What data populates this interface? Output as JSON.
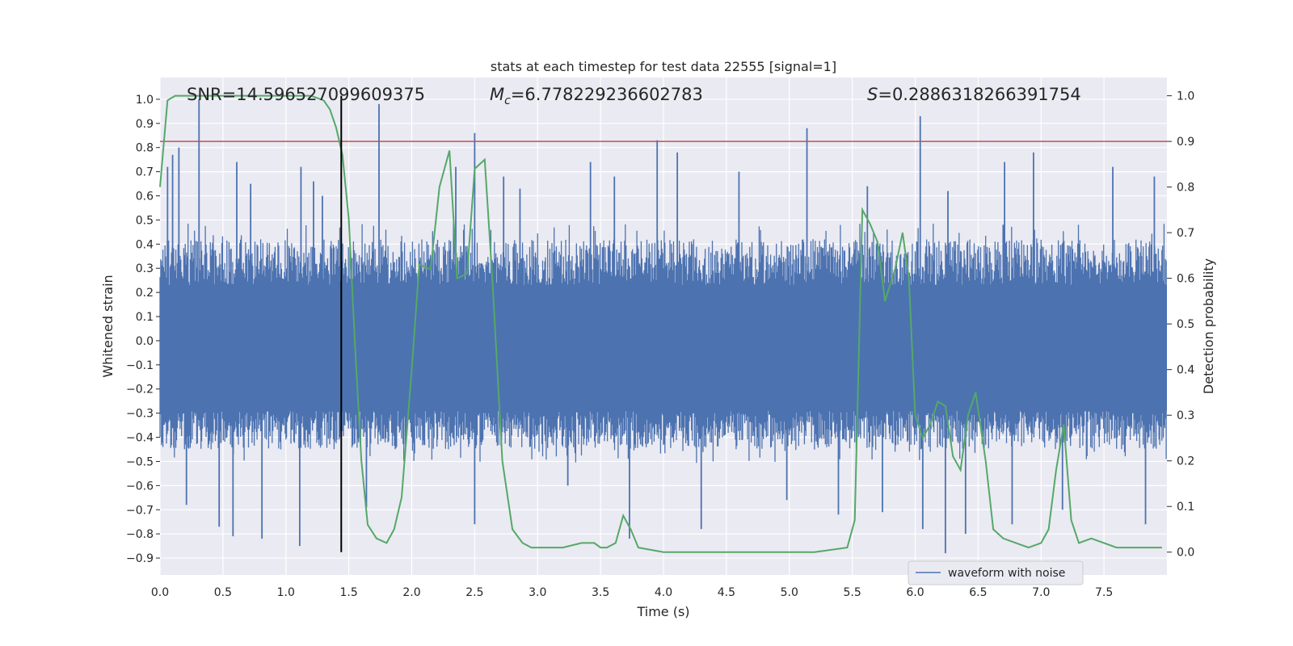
{
  "chart_data": {
    "type": "line",
    "title": "stats at each timestep for test data 22555 [signal=1]",
    "xlabel": "Time (s)",
    "ylabel": "Whitened strain",
    "y2label": "Detection probability",
    "xlim": [
      0.0,
      8.0
    ],
    "ylim": [
      -0.97,
      1.09
    ],
    "y2lim": [
      -0.05,
      1.04
    ],
    "xticks": [
      "0.0",
      "0.5",
      "1.0",
      "1.5",
      "2.0",
      "2.5",
      "3.0",
      "3.5",
      "4.0",
      "4.5",
      "5.0",
      "5.5",
      "6.0",
      "6.5",
      "7.0",
      "7.5"
    ],
    "yticks": [
      "1.0",
      "0.9",
      "0.8",
      "0.7",
      "0.6",
      "0.5",
      "0.4",
      "0.3",
      "0.2",
      "0.1",
      "0.0",
      "-0.1",
      "-0.2",
      "-0.3",
      "-0.4",
      "-0.5",
      "-0.6",
      "-0.7",
      "-0.8",
      "-0.9"
    ],
    "y2ticks": [
      "1.0",
      "0.9",
      "0.8",
      "0.7",
      "0.6",
      "0.5",
      "0.4",
      "0.3",
      "0.2",
      "0.1",
      "0.0"
    ],
    "grid": true,
    "legend": {
      "position": "lower right",
      "entries": [
        "waveform with noise"
      ]
    },
    "annotations": {
      "snr": "SNR=14.596527099609375",
      "mc_symbol": "M",
      "mc_sub": "c",
      "mc_value": "=6.778229236602783",
      "s_symbol": "S",
      "s_value": "=0.2886318266391754"
    },
    "threshold": {
      "axis": "y2",
      "value": 0.9,
      "color": "#c44e52"
    },
    "marker_time": 1.44,
    "waveform": {
      "name": "waveform with noise",
      "color": "#4c72b0",
      "t_start": 0.0,
      "t_end": 8.0,
      "body_upper": 0.23,
      "body_lower": -0.29,
      "envelope_upper": 0.42,
      "envelope_lower": -0.45,
      "spikes": [
        [
          0.06,
          0.72
        ],
        [
          0.1,
          0.77
        ],
        [
          0.15,
          0.8
        ],
        [
          0.31,
          1.0
        ],
        [
          0.61,
          0.74
        ],
        [
          0.72,
          0.65
        ],
        [
          1.12,
          0.72
        ],
        [
          1.22,
          0.66
        ],
        [
          1.29,
          0.6
        ],
        [
          1.74,
          0.98
        ],
        [
          2.35,
          0.72
        ],
        [
          2.5,
          0.86
        ],
        [
          2.73,
          0.68
        ],
        [
          2.86,
          0.63
        ],
        [
          3.42,
          0.74
        ],
        [
          3.61,
          0.68
        ],
        [
          3.95,
          0.83
        ],
        [
          4.11,
          0.78
        ],
        [
          4.6,
          0.7
        ],
        [
          5.14,
          0.88
        ],
        [
          5.62,
          0.64
        ],
        [
          6.04,
          0.93
        ],
        [
          6.26,
          0.62
        ],
        [
          6.71,
          0.74
        ],
        [
          6.94,
          0.78
        ],
        [
          7.57,
          0.72
        ],
        [
          7.9,
          0.68
        ],
        [
          0.21,
          -0.68
        ],
        [
          0.47,
          -0.77
        ],
        [
          0.58,
          -0.81
        ],
        [
          0.81,
          -0.82
        ],
        [
          1.11,
          -0.85
        ],
        [
          1.64,
          -0.69
        ],
        [
          2.5,
          -0.76
        ],
        [
          3.73,
          -0.82
        ],
        [
          4.3,
          -0.78
        ],
        [
          5.39,
          -0.72
        ],
        [
          5.74,
          -0.71
        ],
        [
          6.06,
          -0.78
        ],
        [
          6.24,
          -0.88
        ],
        [
          6.4,
          -0.8
        ],
        [
          6.77,
          -0.76
        ],
        [
          7.17,
          -0.7
        ],
        [
          7.83,
          -0.76
        ],
        [
          3.24,
          -0.6
        ],
        [
          4.98,
          -0.66
        ]
      ]
    },
    "probability": {
      "color": "#55a868",
      "x": [
        0.0,
        0.06,
        0.12,
        0.3,
        0.6,
        0.9,
        1.2,
        1.3,
        1.35,
        1.4,
        1.45,
        1.5,
        1.55,
        1.6,
        1.65,
        1.72,
        1.8,
        1.86,
        1.92,
        2.0,
        2.06,
        2.15,
        2.22,
        2.3,
        2.36,
        2.44,
        2.5,
        2.58,
        2.64,
        2.72,
        2.8,
        2.88,
        2.95,
        3.2,
        3.35,
        3.45,
        3.5,
        3.55,
        3.62,
        3.68,
        3.74,
        3.8,
        4.0,
        4.4,
        4.8,
        5.2,
        5.46,
        5.52,
        5.58,
        5.64,
        5.7,
        5.76,
        5.84,
        5.9,
        5.95,
        6.0,
        6.06,
        6.12,
        6.18,
        6.24,
        6.3,
        6.36,
        6.42,
        6.48,
        6.56,
        6.62,
        6.7,
        6.8,
        6.9,
        7.0,
        7.06,
        7.12,
        7.18,
        7.24,
        7.3,
        7.4,
        7.6,
        7.96
      ],
      "y": [
        0.8,
        0.99,
        1.0,
        1.0,
        1.0,
        1.0,
        1.0,
        0.99,
        0.97,
        0.93,
        0.87,
        0.73,
        0.45,
        0.2,
        0.06,
        0.03,
        0.02,
        0.05,
        0.12,
        0.4,
        0.63,
        0.62,
        0.8,
        0.88,
        0.6,
        0.61,
        0.84,
        0.86,
        0.6,
        0.2,
        0.05,
        0.02,
        0.01,
        0.01,
        0.02,
        0.02,
        0.01,
        0.01,
        0.02,
        0.08,
        0.05,
        0.01,
        0.0,
        0.0,
        0.0,
        0.0,
        0.01,
        0.07,
        0.75,
        0.72,
        0.68,
        0.55,
        0.62,
        0.7,
        0.6,
        0.3,
        0.25,
        0.28,
        0.33,
        0.32,
        0.21,
        0.18,
        0.3,
        0.35,
        0.2,
        0.05,
        0.03,
        0.02,
        0.01,
        0.02,
        0.05,
        0.18,
        0.28,
        0.07,
        0.02,
        0.03,
        0.01,
        0.01
      ]
    },
    "colors": {
      "plot_bg": "#eaeaf2",
      "grid": "#ffffff",
      "marker_line": "#000000"
    }
  }
}
